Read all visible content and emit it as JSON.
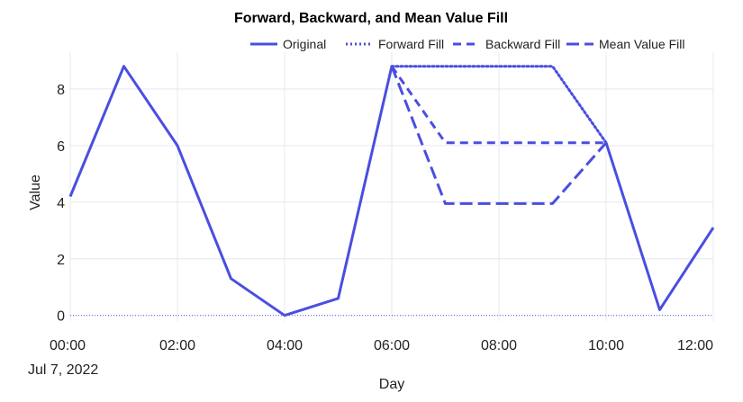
{
  "colors": {
    "series": "#4a4ee0",
    "grid": "#e6e8f2",
    "background": "#ffffff"
  },
  "chart_data": {
    "type": "line",
    "title": "Forward, Backward, and Mean Value Fill",
    "xlabel": "Day",
    "ylabel": "Value",
    "x_date_label": "Jul 7, 2022",
    "x_tick_labels": [
      "00:00",
      "02:00",
      "04:00",
      "06:00",
      "08:00",
      "10:00",
      "12:00"
    ],
    "x": [
      "00:00",
      "01:00",
      "02:00",
      "03:00",
      "04:00",
      "05:00",
      "06:00",
      "07:00",
      "08:00",
      "09:00",
      "10:00",
      "11:00",
      "12:00"
    ],
    "xlim": [
      "00:00",
      "12:00"
    ],
    "ylim": [
      -0.2,
      9.3
    ],
    "y_ticks": [
      0,
      2,
      4,
      6,
      8
    ],
    "grid": true,
    "legend_position": "top-right",
    "series": [
      {
        "name": "Original",
        "dash": "solid",
        "values": [
          4.2,
          8.8,
          6.0,
          1.3,
          0.0,
          0.6,
          8.8,
          null,
          null,
          null,
          6.1,
          0.2,
          3.1
        ]
      },
      {
        "name": "Forward Fill",
        "dash": "dot",
        "values": [
          null,
          null,
          null,
          null,
          null,
          null,
          8.8,
          8.8,
          8.8,
          8.8,
          6.1,
          null,
          null
        ]
      },
      {
        "name": "Backward Fill",
        "dash": "dash",
        "values": [
          null,
          null,
          null,
          null,
          null,
          null,
          8.8,
          6.1,
          6.1,
          6.1,
          6.1,
          null,
          null
        ]
      },
      {
        "name": "Mean Value Fill",
        "dash": "longdash",
        "values": [
          null,
          null,
          null,
          null,
          null,
          null,
          8.8,
          3.95,
          3.95,
          3.95,
          6.1,
          null,
          null
        ]
      }
    ]
  }
}
